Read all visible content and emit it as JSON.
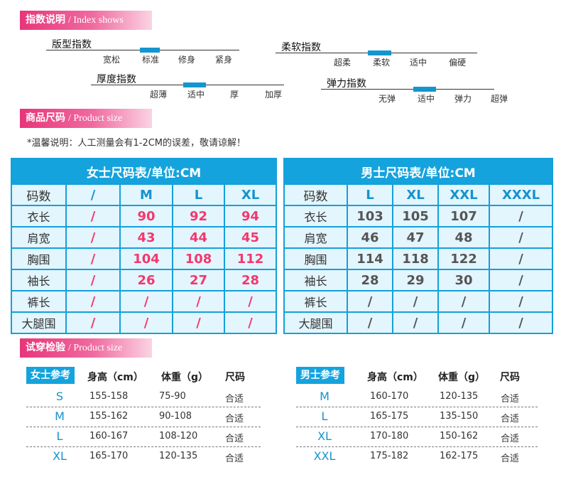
{
  "sections": {
    "index": {
      "cn": "指数说明",
      "en": "/ Index shows"
    },
    "product": {
      "cn": "商品尺码",
      "en": "/ Product size"
    },
    "fitting": {
      "cn": "试穿检验",
      "en": "/ Product size"
    }
  },
  "index_scales": [
    {
      "title": "版型指数",
      "options": [
        "宽松",
        "标准",
        "修身",
        "紧身"
      ],
      "selected": 1
    },
    {
      "title": "柔软指数",
      "options": [
        "超柔",
        "柔软",
        "适中",
        "偏硬"
      ],
      "selected": 1
    },
    {
      "title": "厚度指数",
      "options": [
        "超薄",
        "适中",
        "厚",
        "加厚"
      ],
      "selected": 1
    },
    {
      "title": "弹力指数",
      "options": [
        "无弹",
        "适中",
        "弹力",
        "超弹"
      ],
      "selected": 1
    }
  ],
  "note": "*温馨说明：人工测量会有1-2CM的误差，敬请谅解！",
  "women_table": {
    "caption": "女士尺码表/单位:CM",
    "header": [
      "码数",
      "/",
      "M",
      "L",
      "XL"
    ],
    "rows": [
      [
        "衣长",
        "/",
        "90",
        "92",
        "94"
      ],
      [
        "肩宽",
        "/",
        "43",
        "44",
        "45"
      ],
      [
        "胸围",
        "/",
        "104",
        "108",
        "112"
      ],
      [
        "袖长",
        "/",
        "26",
        "27",
        "28"
      ],
      [
        "裤长",
        "/",
        "/",
        "/",
        "/"
      ],
      [
        "大腿围",
        "/",
        "/",
        "/",
        "/"
      ]
    ]
  },
  "men_table": {
    "caption": "男士尺码表/单位:CM",
    "header": [
      "码数",
      "L",
      "XL",
      "XXL",
      "XXXL"
    ],
    "rows": [
      [
        "衣长",
        "103",
        "105",
        "107",
        "/"
      ],
      [
        "肩宽",
        "46",
        "47",
        "48",
        "/"
      ],
      [
        "胸围",
        "114",
        "118",
        "122",
        "/"
      ],
      [
        "袖长",
        "28",
        "29",
        "30",
        "/"
      ],
      [
        "裤长",
        "/",
        "/",
        "/",
        "/"
      ],
      [
        "大腿围",
        "/",
        "/",
        "/",
        "/"
      ]
    ]
  },
  "women_fit": {
    "tag": "女士参考",
    "headers": [
      "身高（cm）",
      "体重（g）",
      "尺码"
    ],
    "rows": [
      [
        "S",
        "155-158",
        "75-90",
        "合适"
      ],
      [
        "M",
        "155-162",
        "90-108",
        "合适"
      ],
      [
        "L",
        "160-167",
        "108-120",
        "合适"
      ],
      [
        "XL",
        "165-170",
        "120-135",
        "合适"
      ]
    ]
  },
  "men_fit": {
    "tag": "男士参考",
    "headers": [
      "身高（cm）",
      "体重（g）",
      "尺码"
    ],
    "rows": [
      [
        "M",
        "160-170",
        "120-135",
        "合适"
      ],
      [
        "L",
        "165-175",
        "135-150",
        "合适"
      ],
      [
        "XL",
        "170-180",
        "150-162",
        "合适"
      ],
      [
        "XXL",
        "175-182",
        "162-175",
        "合适"
      ]
    ]
  }
}
